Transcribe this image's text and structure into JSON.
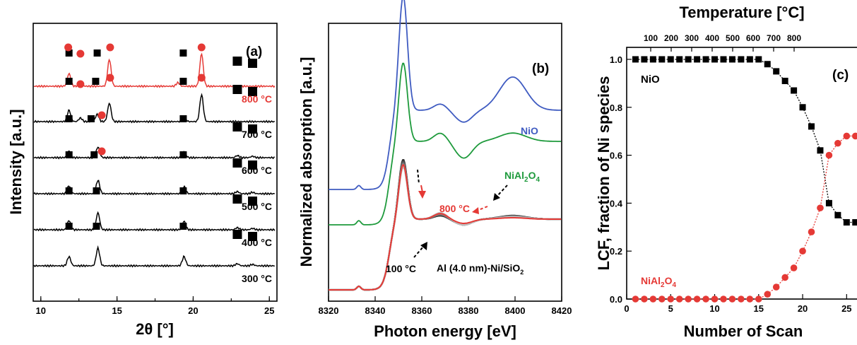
{
  "colors": {
    "black": "#000000",
    "red": "#e53935",
    "blue": "#3f5bc1",
    "green": "#1e9a3c",
    "gray": "#8a8a8a"
  },
  "chart_data": [
    {
      "panel": "(a)",
      "type": "line",
      "xlabel": "2θ [°]",
      "ylabel": "Intensity [a.u.]",
      "xlim": [
        9.5,
        25.5
      ],
      "xticks": [
        "10",
        "15",
        "20",
        "25"
      ],
      "series": [
        {
          "name": "800 °C",
          "color": "#e53935",
          "peaks": [
            [
              11.85,
              18
            ],
            [
              12.6,
              6
            ],
            [
              14.5,
              38
            ],
            [
              19.0,
              5
            ],
            [
              20.55,
              46
            ]
          ]
        },
        {
          "name": "700 °C",
          "color": "#000000",
          "peaks": [
            [
              11.85,
              16
            ],
            [
              12.6,
              5
            ],
            [
              13.7,
              10
            ],
            [
              14.5,
              26
            ],
            [
              19.4,
              7
            ],
            [
              20.55,
              38
            ]
          ]
        },
        {
          "name": "600 °C",
          "color": "#000000",
          "peaks": [
            [
              11.85,
              9
            ],
            [
              13.75,
              15
            ],
            [
              19.4,
              9
            ],
            [
              22.9,
              3
            ],
            [
              23.9,
              2
            ]
          ]
        },
        {
          "name": "500 °C",
          "color": "#000000",
          "peaks": [
            [
              11.85,
              11
            ],
            [
              13.75,
              19
            ],
            [
              19.4,
              10
            ],
            [
              22.9,
              3
            ],
            [
              23.9,
              2
            ]
          ]
        },
        {
          "name": "400 °C",
          "color": "#000000",
          "peaks": [
            [
              11.85,
              13
            ],
            [
              13.75,
              24
            ],
            [
              19.4,
              12
            ],
            [
              22.9,
              3
            ],
            [
              23.9,
              2
            ]
          ]
        },
        {
          "name": "300 °C",
          "color": "#000000",
          "peaks": [
            [
              11.85,
              13
            ],
            [
              13.75,
              25
            ],
            [
              19.4,
              13
            ],
            [
              22.9,
              3
            ],
            [
              23.9,
              2
            ]
          ]
        }
      ],
      "markers": {
        "square": [
          [
            11.85,
            5
          ],
          [
            13.7,
            5
          ],
          [
            19.35,
            5
          ],
          [
            22.9,
            5
          ],
          [
            23.9,
            5
          ],
          [
            11.85,
            4
          ],
          [
            13.6,
            4
          ],
          [
            19.35,
            4
          ],
          [
            22.9,
            4
          ],
          [
            23.9,
            4
          ],
          [
            11.85,
            3
          ],
          [
            13.3,
            3
          ],
          [
            19.35,
            3
          ],
          [
            22.9,
            3
          ],
          [
            23.9,
            3
          ],
          [
            11.85,
            2
          ],
          [
            13.5,
            2
          ],
          [
            19.35,
            2
          ],
          [
            22.9,
            2
          ],
          [
            23.9,
            2
          ],
          [
            11.85,
            1
          ],
          [
            13.65,
            1
          ],
          [
            19.35,
            1
          ],
          [
            22.9,
            1
          ],
          [
            23.9,
            1
          ],
          [
            11.85,
            0
          ],
          [
            13.65,
            0
          ],
          [
            19.35,
            0
          ],
          [
            22.9,
            0
          ],
          [
            23.9,
            0
          ]
        ],
        "circle": [
          [
            11.8,
            5
          ],
          [
            12.6,
            5
          ],
          [
            14.55,
            5
          ],
          [
            20.55,
            5
          ],
          [
            12.6,
            4
          ],
          [
            14.55,
            4
          ],
          [
            20.55,
            4
          ],
          [
            14.0,
            3
          ],
          [
            14.0,
            2
          ]
        ]
      }
    },
    {
      "panel": "(b)",
      "type": "line",
      "xlabel": "Photon energy [eV]",
      "ylabel": "Normalized absorption [a.u.]",
      "xlim": [
        8320,
        8420
      ],
      "xticks": [
        "8320",
        "8340",
        "8360",
        "8380",
        "8400",
        "8420"
      ],
      "series": [
        {
          "name": "NiO",
          "color": "#3f5bc1"
        },
        {
          "name": "NiAl2O4",
          "color": "#1e9a3c"
        },
        {
          "name": "100 °C",
          "color": "#000000"
        },
        {
          "name": "800 °C",
          "color": "#e53935"
        }
      ],
      "annotations": [
        "800 °C",
        "100 °C",
        "Al (4.0 nm)-Ni/SiO",
        "2"
      ]
    },
    {
      "panel": "(c)",
      "type": "scatter",
      "xlabel": "Number of Scan",
      "ylabel": "LCF, fraction of Ni species",
      "top_xlabel": "Temperature [°C]",
      "xlim": [
        0,
        26.5
      ],
      "ylim": [
        0,
        1.05
      ],
      "xticks": [
        "0",
        "5",
        "10",
        "15",
        "20",
        "25"
      ],
      "yticks": [
        "0.0",
        "0.2",
        "0.4",
        "0.6",
        "0.8",
        "1.0"
      ],
      "top_xticks": [
        "100",
        "200",
        "300",
        "400",
        "500",
        "600",
        "700",
        "800"
      ],
      "x": [
        1,
        2,
        3,
        4,
        5,
        6,
        7,
        8,
        9,
        10,
        11,
        12,
        13,
        14,
        15,
        16,
        17,
        18,
        19,
        20,
        21,
        22,
        23,
        24,
        25,
        26
      ],
      "series": [
        {
          "name": "NiO",
          "color": "#000000",
          "marker": "square",
          "values": [
            1.0,
            1.0,
            1.0,
            1.0,
            1.0,
            1.0,
            1.0,
            1.0,
            1.0,
            1.0,
            1.0,
            1.0,
            1.0,
            1.0,
            1.0,
            0.98,
            0.95,
            0.91,
            0.87,
            0.8,
            0.72,
            0.62,
            0.4,
            0.35,
            0.32,
            0.32
          ]
        },
        {
          "name": "NiAl2O4",
          "color": "#e53935",
          "marker": "circle",
          "values": [
            0.0,
            0.0,
            0.0,
            0.0,
            0.0,
            0.0,
            0.0,
            0.0,
            0.0,
            0.0,
            0.0,
            0.0,
            0.0,
            0.0,
            0.0,
            0.02,
            0.05,
            0.09,
            0.13,
            0.2,
            0.28,
            0.38,
            0.6,
            0.65,
            0.68,
            0.68
          ]
        }
      ]
    }
  ],
  "labels": {
    "a_letter": "(a)",
    "b_letter": "(b)",
    "c_letter": "(c)",
    "nio": "NiO",
    "nial_main": "NiAl",
    "sub2": "2",
    "o_main": "O",
    "sub4": "4",
    "b_800": "800 °C",
    "b_100": "100 °C",
    "b_sample_main": "Al (4.0 nm)-Ni/SiO",
    "b_sample_sub": "2",
    "c_nio": "NiO",
    "temperature_title": "Temperature [°C]"
  }
}
